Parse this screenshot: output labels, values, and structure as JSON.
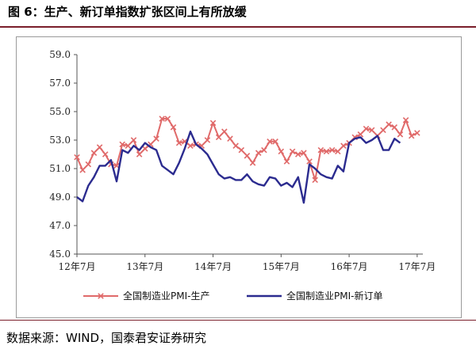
{
  "figure": {
    "title": "图 6：生产、新订单指数扩张区间上有所放缓",
    "source": "数据来源：WIND，国泰君安证券研究"
  },
  "chart_data": {
    "type": "line",
    "title": "",
    "xlabel": "",
    "ylabel": "",
    "ylim": [
      45.0,
      59.0
    ],
    "yticks": [
      "45.0",
      "47.0",
      "49.0",
      "51.0",
      "53.0",
      "55.0",
      "57.0",
      "59.0"
    ],
    "ytick_values": [
      45,
      47,
      49,
      51,
      53,
      55,
      57,
      59
    ],
    "xticks": [
      "12年7月",
      "13年7月",
      "14年7月",
      "15年7月",
      "16年7月",
      "17年7月"
    ],
    "xtick_months": [
      0,
      12,
      24,
      36,
      48,
      60
    ],
    "legend_position": "bottom",
    "grid": false,
    "months": [
      "2012-07",
      "2012-08",
      "2012-09",
      "2012-10",
      "2012-11",
      "2012-12",
      "2013-01",
      "2013-02",
      "2013-03",
      "2013-04",
      "2013-05",
      "2013-06",
      "2013-07",
      "2013-08",
      "2013-09",
      "2013-10",
      "2013-11",
      "2013-12",
      "2014-01",
      "2014-02",
      "2014-03",
      "2014-04",
      "2014-05",
      "2014-06",
      "2014-07",
      "2014-08",
      "2014-09",
      "2014-10",
      "2014-11",
      "2014-12",
      "2015-01",
      "2015-02",
      "2015-03",
      "2015-04",
      "2015-05",
      "2015-06",
      "2015-07",
      "2015-08",
      "2015-09",
      "2015-10",
      "2015-11",
      "2015-12",
      "2016-01",
      "2016-02",
      "2016-03",
      "2016-04",
      "2016-05",
      "2016-06",
      "2016-07",
      "2016-08",
      "2016-09",
      "2016-10",
      "2016-11",
      "2016-12",
      "2017-01",
      "2017-02",
      "2017-03",
      "2017-04",
      "2017-05",
      "2017-06",
      "2017-07",
      "2017-08"
    ],
    "series": [
      {
        "name": "全国制造业PMI-生产",
        "color": "#e06a6a",
        "marker": "x",
        "values": [
          51.8,
          50.9,
          51.3,
          52.1,
          52.5,
          52.0,
          51.3,
          51.2,
          52.7,
          52.6,
          53.0,
          52.0,
          52.4,
          52.7,
          53.1,
          54.5,
          54.5,
          53.9,
          52.8,
          52.9,
          52.6,
          52.7,
          52.6,
          53.0,
          54.2,
          53.2,
          53.6,
          53.1,
          52.6,
          52.3,
          51.9,
          51.4,
          52.1,
          52.3,
          52.9,
          52.9,
          52.2,
          51.5,
          52.2,
          52.0,
          52.1,
          51.5,
          50.2,
          52.3,
          52.2,
          52.3,
          52.2,
          52.6,
          52.8,
          53.2,
          53.4,
          53.8,
          53.7,
          53.3,
          53.7,
          54.1,
          53.9,
          53.4,
          54.4,
          53.3,
          53.5,
          null
        ]
      },
      {
        "name": "全国制造业PMI-新订单",
        "color": "#2b2b8f",
        "marker": "none",
        "values": [
          49.0,
          48.7,
          49.8,
          50.4,
          51.2,
          51.2,
          51.6,
          50.1,
          52.3,
          52.1,
          52.6,
          52.3,
          52.8,
          52.5,
          52.3,
          51.2,
          50.9,
          50.6,
          51.4,
          52.4,
          53.6,
          52.7,
          52.4,
          52.0,
          51.3,
          50.6,
          50.3,
          50.4,
          50.2,
          50.2,
          50.6,
          50.1,
          49.9,
          49.8,
          50.4,
          50.3,
          49.8,
          50.0,
          49.7,
          50.4,
          48.6,
          51.3,
          51.0,
          50.6,
          50.4,
          50.3,
          51.2,
          50.8,
          52.8,
          53.1,
          53.2,
          52.8,
          53.0,
          53.3,
          52.3,
          52.3,
          53.1,
          52.8,
          null,
          null,
          null,
          null
        ]
      }
    ]
  }
}
